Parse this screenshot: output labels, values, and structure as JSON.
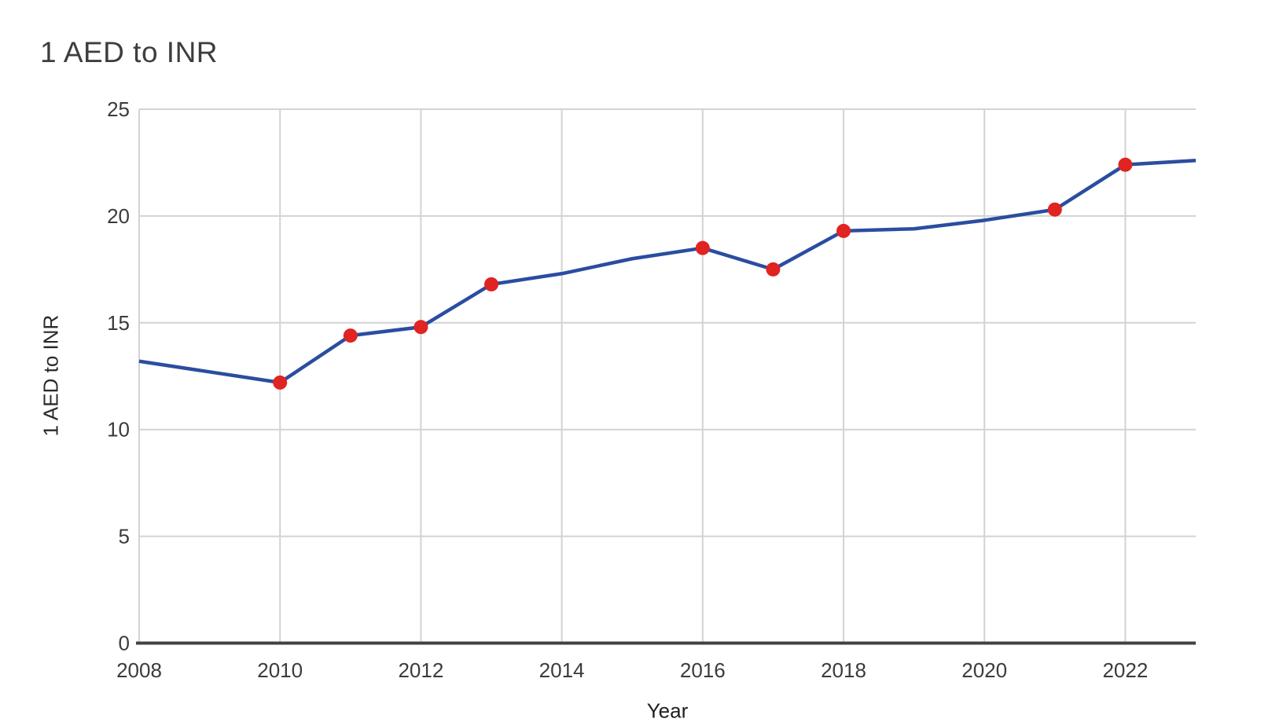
{
  "page": {
    "background": "#ffffff"
  },
  "chart_data": {
    "type": "line",
    "title": "1 AED to INR",
    "xlabel": "Year",
    "ylabel": "1 AED to INR",
    "x": [
      2008,
      2009,
      2010,
      2011,
      2012,
      2013,
      2014,
      2015,
      2016,
      2017,
      2018,
      2019,
      2020,
      2021,
      2022,
      2023
    ],
    "series": [
      {
        "name": "1 AED to INR",
        "values": [
          13.2,
          12.7,
          12.2,
          14.4,
          14.8,
          16.8,
          17.3,
          18.0,
          18.5,
          17.5,
          19.3,
          19.4,
          19.8,
          20.3,
          22.4,
          22.6
        ],
        "color": "#2b4da0"
      }
    ],
    "marker_years": [
      2010,
      2011,
      2012,
      2013,
      2016,
      2017,
      2018,
      2021,
      2022
    ],
    "marker_color": "#e02421",
    "marker_radius": 9,
    "line_width": 4.5,
    "x_ticks": [
      2008,
      2010,
      2012,
      2014,
      2016,
      2018,
      2020,
      2022
    ],
    "y_ticks": [
      0,
      5,
      10,
      15,
      20,
      25
    ],
    "xlim": [
      2008,
      2023
    ],
    "ylim": [
      0,
      25
    ],
    "grid": true,
    "legend": false,
    "grid_color": "#d3d3d3",
    "axis_color": "#424242",
    "tick_text_color": "#3b3b3b"
  }
}
